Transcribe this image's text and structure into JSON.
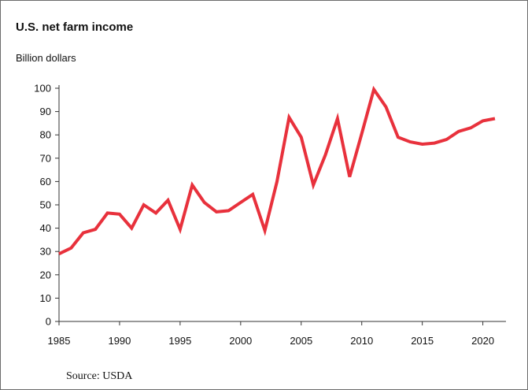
{
  "chart_data": {
    "type": "line",
    "title": "U.S. net farm income",
    "ylabel": "Billion dollars",
    "xlabel": "",
    "source": "Source: USDA",
    "xlim": [
      1985,
      2021
    ],
    "ylim": [
      0,
      100
    ],
    "x_ticks": [
      1985,
      1990,
      1995,
      2000,
      2005,
      2010,
      2015,
      2020
    ],
    "y_ticks": [
      0,
      10,
      20,
      30,
      40,
      50,
      60,
      70,
      80,
      90,
      100
    ],
    "grid": false,
    "line_color": "#e8313c",
    "series": [
      {
        "x": [
          1985,
          1986,
          1987,
          1988,
          1989,
          1990,
          1991,
          1992,
          1993,
          1994,
          1995,
          1996,
          1997,
          1998,
          1999,
          2000,
          2001,
          2002,
          2003,
          2004,
          2005,
          2006,
          2007,
          2008,
          2009,
          2010,
          2011,
          2012,
          2013,
          2014,
          2015,
          2016,
          2017,
          2018,
          2019,
          2020,
          2021
        ],
        "values": [
          29,
          31.5,
          38,
          39.5,
          46.5,
          46,
          40,
          50,
          46.5,
          52,
          39.5,
          58.5,
          51,
          47,
          47.5,
          51,
          54.5,
          39,
          60,
          87.5,
          79,
          58.5,
          71.5,
          87,
          62,
          80.5,
          99.5,
          92,
          79,
          77,
          76,
          76.5,
          78,
          81.5,
          83,
          86,
          87
        ]
      }
    ]
  }
}
